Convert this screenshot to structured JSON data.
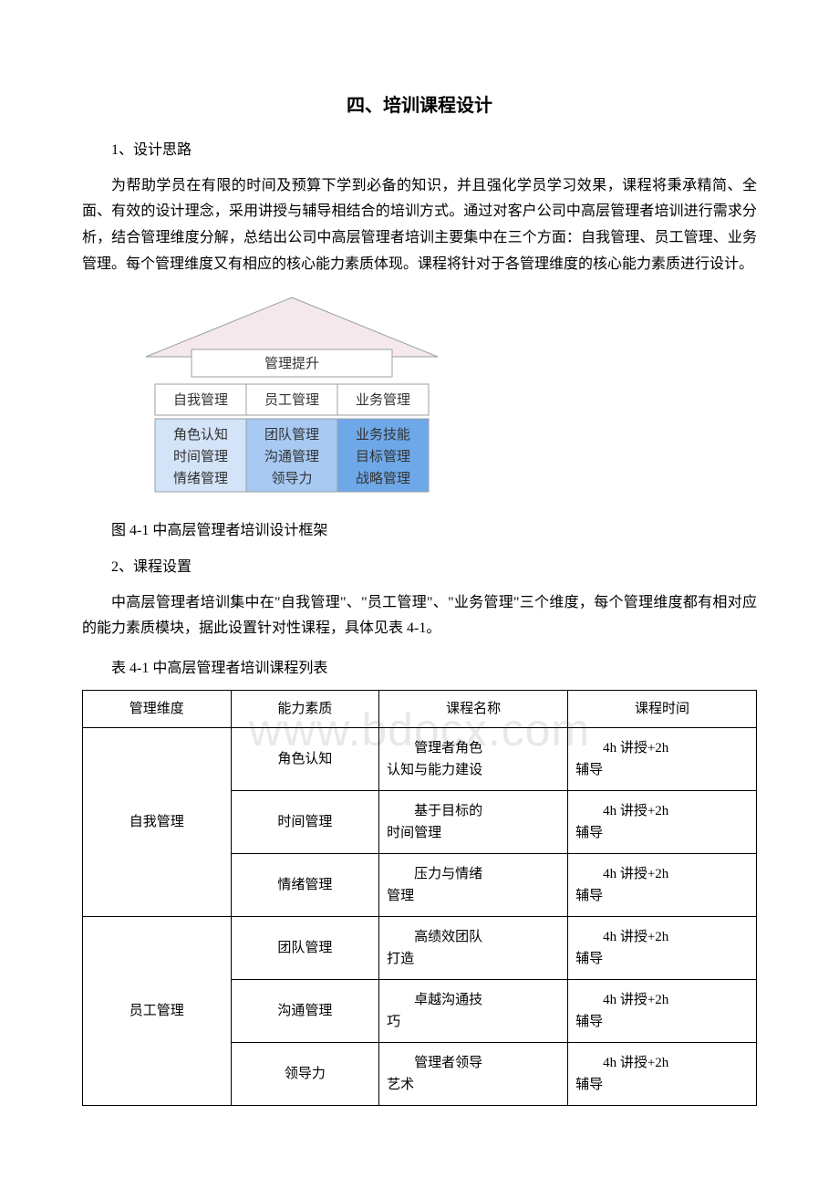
{
  "title": "四、培训课程设计",
  "section1_heading": "1、设计思路",
  "section1_paragraph": "为帮助学员在有限的时间及预算下学到必备的知识，并且强化学员学习效果，课程将秉承精简、全面、有效的设计理念，采用讲授与辅导相结合的培训方式。通过对客户公司中高层管理者培训进行需求分析，结合管理维度分解，总结出公司中高层管理者培训主要集中在三个方面：自我管理、员工管理、业务管理。每个管理维度又有相应的核心能力素质体现。课程将针对于各管理维度的核心能力素质进行设计。",
  "diagram": {
    "roof_label": "管理提升",
    "columns": [
      {
        "header": "自我管理",
        "items": [
          "角色认知",
          "时间管理",
          "情绪管理"
        ]
      },
      {
        "header": "员工管理",
        "items": [
          "团队管理",
          "沟通管理",
          "领导力"
        ]
      },
      {
        "header": "业务管理",
        "items": [
          "业务技能",
          "目标管理",
          "战略管理"
        ]
      }
    ],
    "colors": {
      "roof_fill": "#f5e8ed",
      "roof_stroke": "#9aa0a6",
      "header_fill": "#ffffff",
      "col0_body_fill": "#d3e3f8",
      "col1_body_fill": "#a7c9f2",
      "col2_body_fill": "#6ea8e8",
      "cell_stroke": "#9aa0a6",
      "text_color": "#333333"
    }
  },
  "figure_caption": "图 4-1 中高层管理者培训设计框架",
  "section2_heading": "2、课程设置",
  "section2_paragraph": "中高层管理者培训集中在\"自我管理\"、\"员工管理\"、\"业务管理\"三个维度，每个管理维度都有相对应的能力素质模块，据此设置针对性课程，具体见表 4-1。",
  "table_caption": "表 4-1 中高层管理者培训课程列表",
  "table": {
    "headers": [
      "管理维度",
      "能力素质",
      "课程名称",
      "课程时间"
    ],
    "groups": [
      {
        "dimension": "自我管理",
        "rows": [
          {
            "capability": "角色认知",
            "course_l1": "管理者角色",
            "course_l2": "认知与能力建设",
            "time_l1": "4h 讲授+2h",
            "time_l2": "辅导"
          },
          {
            "capability": "时间管理",
            "course_l1": "基于目标的",
            "course_l2": "时间管理",
            "time_l1": "4h 讲授+2h",
            "time_l2": "辅导"
          },
          {
            "capability": "情绪管理",
            "course_l1": "压力与情绪",
            "course_l2": "管理",
            "time_l1": "4h 讲授+2h",
            "time_l2": "辅导"
          }
        ]
      },
      {
        "dimension": "员工管理",
        "rows": [
          {
            "capability": "团队管理",
            "course_l1": "高绩效团队",
            "course_l2": "打造",
            "time_l1": "4h 讲授+2h",
            "time_l2": "辅导"
          },
          {
            "capability": "沟通管理",
            "course_l1": "卓越沟通技",
            "course_l2": "巧",
            "time_l1": "4h 讲授+2h",
            "time_l2": "辅导"
          },
          {
            "capability": "领导力",
            "course_l1": "管理者领导",
            "course_l2": "艺术",
            "time_l1": "4h 讲授+2h",
            "time_l2": "辅导"
          }
        ]
      }
    ]
  },
  "watermark": "www.bdocx.com"
}
